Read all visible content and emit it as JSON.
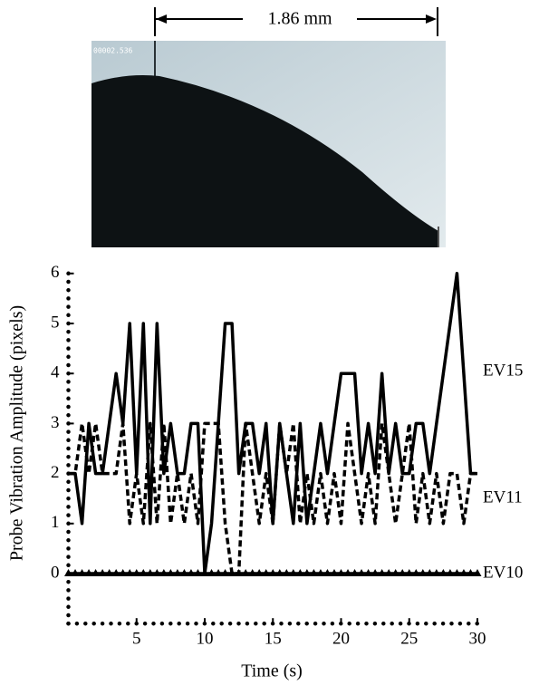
{
  "image": {
    "scale_bar": "1.86 mm",
    "timestamp": "00002.536"
  },
  "chart_data": {
    "type": "line",
    "x_label": "Time (s)",
    "y_label": "Probe Vibration Amplitude (pixels)",
    "x": [
      0,
      0.5,
      1,
      1.5,
      2,
      2.5,
      3,
      3.5,
      4,
      4.5,
      5,
      5.5,
      6,
      6.5,
      7,
      7.5,
      8,
      8.5,
      9,
      9.5,
      10,
      10.5,
      11,
      11.5,
      12,
      12.5,
      13,
      13.5,
      14,
      14.5,
      15,
      15.5,
      16,
      16.5,
      17,
      17.5,
      18,
      18.5,
      19,
      19.5,
      20,
      20.5,
      21,
      21.5,
      22,
      22.5,
      23,
      23.5,
      24,
      24.5,
      25,
      25.5,
      26,
      26.5,
      27,
      27.5,
      28,
      28.5,
      29,
      29.5,
      30
    ],
    "series": [
      {
        "name": "EV15",
        "color": "#000000",
        "line_style": "solid",
        "values": [
          2,
          2,
          1,
          3,
          2,
          2,
          3,
          4,
          3,
          5,
          2,
          5,
          1,
          5,
          2,
          3,
          2,
          2,
          3,
          3,
          0,
          1,
          3,
          5,
          5,
          2,
          3,
          3,
          2,
          3,
          1,
          3,
          2,
          1,
          3,
          1,
          2,
          3,
          2,
          3,
          4,
          4,
          4,
          2,
          3,
          2,
          4,
          2,
          3,
          2,
          2,
          3,
          3,
          2,
          3,
          4,
          5,
          6,
          4,
          2,
          2
        ]
      },
      {
        "name": "EV11",
        "color": "#000000",
        "line_style": "dashed",
        "values": [
          2,
          2,
          3,
          2,
          3,
          2,
          2,
          2,
          3,
          1,
          2,
          1,
          3,
          1,
          3,
          1,
          2,
          1,
          2,
          1,
          3,
          3,
          3,
          1,
          0,
          0,
          3,
          2,
          1,
          2,
          1,
          3,
          2,
          3,
          1,
          2,
          1,
          2,
          1,
          2,
          1,
          3,
          2,
          1,
          2,
          1,
          3,
          2,
          1,
          2,
          3,
          1,
          2,
          1,
          2,
          1,
          2,
          2,
          1,
          2,
          2
        ]
      },
      {
        "name": "EV10",
        "color": "#000000",
        "line_style": "solid",
        "marker": "triangle",
        "values": [
          0,
          0,
          0,
          0,
          0,
          0,
          0,
          0,
          0,
          0,
          0,
          0,
          0,
          0,
          0,
          0,
          0,
          0,
          0,
          0,
          0,
          0,
          0,
          0,
          0,
          0,
          0,
          0,
          0,
          0,
          0,
          0,
          0,
          0,
          0,
          0,
          0,
          0,
          0,
          0,
          0,
          0,
          0,
          0,
          0,
          0,
          0,
          0,
          0,
          0,
          0,
          0,
          0,
          0,
          0,
          0,
          0,
          0,
          0,
          0,
          0
        ]
      }
    ],
    "xlim": [
      0,
      30
    ],
    "xticks": [
      5,
      10,
      15,
      20,
      25,
      30
    ],
    "ylim": [
      -1,
      6
    ],
    "yticks": [
      0,
      1,
      2,
      3,
      4,
      5,
      6
    ]
  }
}
